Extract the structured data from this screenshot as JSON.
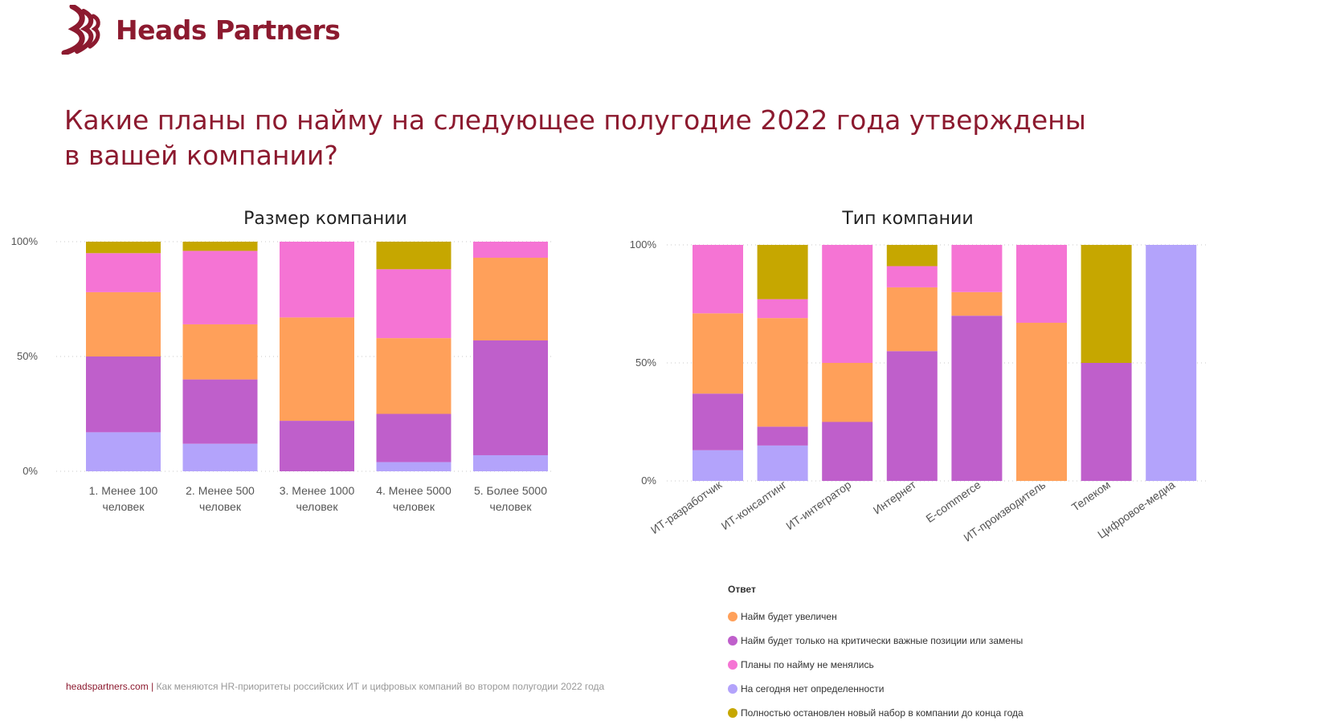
{
  "brand": {
    "name": "Heads Partners",
    "color": "#8c1a2f"
  },
  "headline": "Какие планы по найму на следующее полугодие 2022 года утверждены в вашей компании?",
  "colors": {
    "Найм будет увеличен": "#ffa05a",
    "Найм будет только на критически важные позиции или замены": "#bf5fcb",
    "Планы по найму не менялись": "#f574d4",
    "На сегодня нет определенности": "#b3a3fb",
    "Полностью остановлен новый набор в компании до конца года": "#c6a700"
  },
  "legend": {
    "title": "Ответ",
    "items": [
      "Найм будет увеличен",
      "Найм будет только на критически важные позиции или замены",
      "Планы по найму не менялись",
      "На сегодня нет определенности",
      "Полностью остановлен новый набор в компании до конца года"
    ]
  },
  "footer": {
    "site": "headspartners.com",
    "separator": "|",
    "text": "Как меняются HR-приоритеты российских ИТ и цифровых компаний во втором полугодии 2022 года"
  },
  "chart_data": [
    {
      "type": "bar",
      "stacked": "100%",
      "title": "Размер компании",
      "ytick_labels": [
        "0%",
        "50%",
        "100%"
      ],
      "ylim": [
        0,
        100
      ],
      "grid": "dotted horizontal",
      "categories": [
        [
          "1. Менее 100",
          "человек"
        ],
        [
          "2. Менее 500",
          "человек"
        ],
        [
          "3. Менее 1000",
          "человек"
        ],
        [
          "4. Менее 5000",
          "человек"
        ],
        [
          "5. Более 5000",
          "человек"
        ]
      ],
      "series": [
        {
          "name": "На сегодня нет определенности",
          "values": [
            17,
            12,
            0,
            4,
            7
          ]
        },
        {
          "name": "Найм будет только на критически важные позиции или замены",
          "values": [
            33,
            28,
            22,
            21,
            50
          ]
        },
        {
          "name": "Найм будет увеличен",
          "values": [
            28,
            24,
            45,
            33,
            36
          ]
        },
        {
          "name": "Планы по найму не менялись",
          "values": [
            17,
            32,
            33,
            30,
            7
          ]
        },
        {
          "name": "Полностью остановлен новый набор в компании до конца года",
          "values": [
            5,
            4,
            0,
            12,
            0
          ]
        }
      ]
    },
    {
      "type": "bar",
      "stacked": "100%",
      "title": "Тип компании",
      "ytick_labels": [
        "0%",
        "50%",
        "100%"
      ],
      "ylim": [
        0,
        100
      ],
      "grid": "dotted horizontal",
      "categories": [
        "ИТ-разработчик",
        "ИТ-консалтинг",
        "ИТ-интегратор",
        "Интернет",
        "E-commerce",
        "ИТ-производитель",
        "Телеком",
        "Цифровое-медиа"
      ],
      "series": [
        {
          "name": "На сегодня нет определенности",
          "values": [
            13,
            15,
            0,
            0,
            0,
            0,
            0,
            100
          ]
        },
        {
          "name": "Найм будет только на критически важные позиции или замены",
          "values": [
            24,
            8,
            25,
            55,
            70,
            0,
            50,
            0
          ]
        },
        {
          "name": "Найм будет увеличен",
          "values": [
            34,
            46,
            25,
            27,
            10,
            67,
            0,
            0
          ]
        },
        {
          "name": "Планы по найму не менялись",
          "values": [
            29,
            8,
            50,
            9,
            20,
            33,
            0,
            0
          ]
        },
        {
          "name": "Полностью остановлен новый набор в компании до конца года",
          "values": [
            0,
            23,
            0,
            9,
            0,
            0,
            50,
            0
          ]
        }
      ]
    }
  ]
}
